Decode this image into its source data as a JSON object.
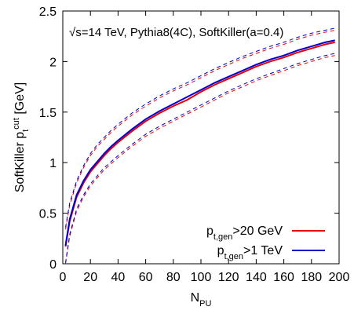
{
  "chart_data": {
    "type": "line",
    "annotation": "√s=14 TeV, Pythia8(4C), SoftKiller(a=0.4)",
    "xlabel": {
      "main": "N",
      "sub": "PU"
    },
    "ylabel": {
      "prefix": "SoftKiller p",
      "sub": "t",
      "sup": "cut",
      "suffix": " [GeV]"
    },
    "xlim": [
      0,
      200
    ],
    "ylim": [
      0,
      2.5
    ],
    "x_ticks": [
      0,
      20,
      40,
      60,
      80,
      100,
      120,
      140,
      160,
      180,
      200
    ],
    "y_ticks": [
      "0",
      "0.5",
      "1",
      "1.5",
      "2",
      "2.5"
    ],
    "grid": false,
    "legend_position": "bottom-right",
    "x": [
      2,
      5,
      10,
      15,
      20,
      25,
      30,
      35,
      40,
      50,
      60,
      70,
      80,
      90,
      100,
      110,
      120,
      130,
      140,
      150,
      160,
      170,
      180,
      190,
      197
    ],
    "series": [
      {
        "name": "20 GeV",
        "legend": {
          "main": "p",
          "sub": "t,gen",
          "tail": ">20 GeV"
        },
        "color": "#e8000b",
        "values": [
          0.17,
          0.42,
          0.66,
          0.8,
          0.91,
          0.99,
          1.07,
          1.14,
          1.2,
          1.31,
          1.41,
          1.49,
          1.56,
          1.62,
          1.7,
          1.77,
          1.83,
          1.89,
          1.95,
          2.0,
          2.04,
          2.09,
          2.13,
          2.17,
          2.19
        ],
        "band_low": [
          0.0,
          0.27,
          0.52,
          0.66,
          0.77,
          0.85,
          0.93,
          0.99,
          1.05,
          1.16,
          1.26,
          1.34,
          1.41,
          1.48,
          1.55,
          1.62,
          1.69,
          1.75,
          1.81,
          1.86,
          1.91,
          1.96,
          2.0,
          2.04,
          2.06
        ],
        "band_high": [
          0.34,
          0.58,
          0.8,
          0.95,
          1.07,
          1.16,
          1.23,
          1.3,
          1.36,
          1.47,
          1.56,
          1.64,
          1.71,
          1.77,
          1.84,
          1.91,
          1.97,
          2.03,
          2.08,
          2.13,
          2.17,
          2.22,
          2.26,
          2.29,
          2.31
        ]
      },
      {
        "name": "1 TeV",
        "legend": {
          "main": "p",
          "sub": "t,gen",
          "tail": ">1 TeV"
        },
        "color": "#0000cc",
        "values": [
          0.18,
          0.44,
          0.68,
          0.82,
          0.93,
          1.01,
          1.09,
          1.16,
          1.22,
          1.33,
          1.43,
          1.51,
          1.58,
          1.65,
          1.72,
          1.79,
          1.85,
          1.91,
          1.97,
          2.02,
          2.06,
          2.11,
          2.15,
          2.19,
          2.21
        ],
        "band_low": [
          0.01,
          0.29,
          0.54,
          0.68,
          0.79,
          0.87,
          0.95,
          1.01,
          1.07,
          1.18,
          1.28,
          1.36,
          1.43,
          1.5,
          1.57,
          1.64,
          1.71,
          1.77,
          1.83,
          1.88,
          1.93,
          1.98,
          2.02,
          2.06,
          2.08
        ],
        "band_high": [
          0.36,
          0.6,
          0.82,
          0.97,
          1.09,
          1.18,
          1.25,
          1.32,
          1.38,
          1.49,
          1.58,
          1.66,
          1.73,
          1.79,
          1.86,
          1.93,
          1.99,
          2.05,
          2.1,
          2.15,
          2.19,
          2.24,
          2.28,
          2.31,
          2.33
        ]
      }
    ]
  }
}
